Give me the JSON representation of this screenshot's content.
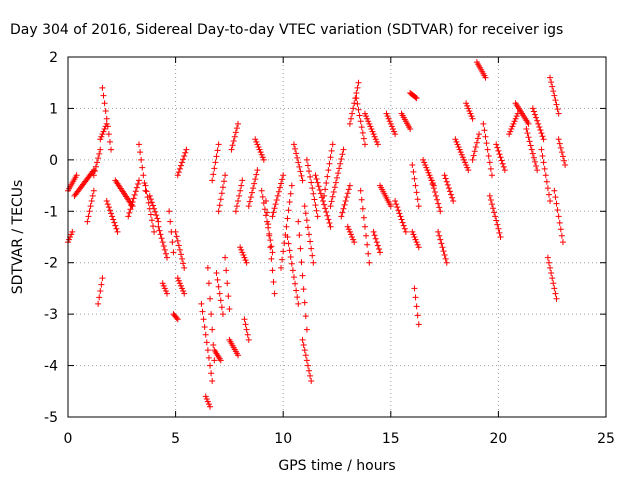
{
  "chart_data": {
    "type": "scatter",
    "title": "Day 304 of 2016, Sidereal Day-to-day VTEC variation (SDTVAR) for receiver igs",
    "xlabel": "GPS time / hours",
    "ylabel": "SDTVAR / TECUs",
    "xlim": [
      0,
      25
    ],
    "ylim": [
      -5,
      2
    ],
    "xticks": [
      "0",
      "5",
      "10",
      "15",
      "20",
      "25"
    ],
    "yticks": [
      "-5",
      "-4",
      "-3",
      "-2",
      "-1",
      "0",
      "1",
      "2"
    ],
    "grid": true,
    "marker": "+",
    "color": "#ff0000",
    "arcs": [
      [
        0.0,
        0.4,
        -0.6,
        -0.3
      ],
      [
        0.0,
        0.2,
        -1.6,
        -1.4
      ],
      [
        0.3,
        1.2,
        -0.7,
        -0.2
      ],
      [
        0.9,
        1.2,
        -1.2,
        -0.6
      ],
      [
        1.2,
        1.5,
        -0.3,
        0.2
      ],
      [
        1.4,
        1.6,
        -2.8,
        -2.3
      ],
      [
        1.5,
        1.8,
        0.4,
        0.7
      ],
      [
        1.6,
        2.0,
        1.4,
        0.2
      ],
      [
        1.8,
        2.3,
        -0.8,
        -1.4
      ],
      [
        2.2,
        3.0,
        -0.4,
        -0.9
      ],
      [
        2.8,
        3.3,
        -1.1,
        -0.4
      ],
      [
        3.3,
        3.6,
        0.3,
        -0.6
      ],
      [
        3.6,
        4.0,
        -0.5,
        -1.4
      ],
      [
        3.8,
        4.2,
        -0.7,
        -1.2
      ],
      [
        4.2,
        4.6,
        -1.3,
        -1.9
      ],
      [
        4.4,
        4.6,
        -2.4,
        -2.6
      ],
      [
        4.7,
        4.9,
        -1.0,
        -1.8
      ],
      [
        4.9,
        5.1,
        -3.0,
        -3.1
      ],
      [
        5.0,
        5.4,
        -1.4,
        -2.1
      ],
      [
        5.1,
        5.4,
        -2.3,
        -2.6
      ],
      [
        5.1,
        5.5,
        -0.3,
        0.2
      ],
      [
        6.2,
        6.7,
        -2.8,
        -4.3
      ],
      [
        6.4,
        6.6,
        -4.6,
        -4.8
      ],
      [
        6.5,
        6.8,
        -2.1,
        -3.9
      ],
      [
        6.7,
        7.0,
        -0.4,
        0.3
      ],
      [
        6.8,
        7.1,
        -3.7,
        -3.9
      ],
      [
        6.9,
        7.2,
        -2.2,
        -3.0
      ],
      [
        7.0,
        7.3,
        -1.0,
        -0.3
      ],
      [
        7.3,
        7.5,
        -1.9,
        -2.9
      ],
      [
        7.5,
        7.9,
        -3.5,
        -3.8
      ],
      [
        7.6,
        7.9,
        0.2,
        0.7
      ],
      [
        7.8,
        8.1,
        -1.0,
        -0.4
      ],
      [
        8.0,
        8.3,
        -1.7,
        -2.0
      ],
      [
        8.2,
        8.4,
        -3.1,
        -3.5
      ],
      [
        8.4,
        8.8,
        -0.9,
        -0.2
      ],
      [
        8.7,
        9.1,
        0.4,
        0.0
      ],
      [
        9.0,
        9.5,
        -0.6,
        -1.8
      ],
      [
        9.2,
        9.6,
        -0.8,
        -2.6
      ],
      [
        9.5,
        10.0,
        -1.1,
        -0.3
      ],
      [
        9.9,
        10.4,
        -2.1,
        -0.5
      ],
      [
        10.2,
        10.7,
        -1.5,
        -2.8
      ],
      [
        10.5,
        10.9,
        0.3,
        -0.4
      ],
      [
        10.7,
        11.1,
        -1.2,
        -3.3
      ],
      [
        10.9,
        11.3,
        -3.5,
        -4.3
      ],
      [
        11.0,
        11.4,
        -0.9,
        -2.0
      ],
      [
        11.1,
        11.6,
        0.0,
        -1.1
      ],
      [
        11.5,
        12.2,
        -0.3,
        -1.3
      ],
      [
        11.9,
        12.3,
        -0.7,
        0.3
      ],
      [
        12.2,
        12.8,
        -0.9,
        0.2
      ],
      [
        12.7,
        13.1,
        -1.1,
        -0.5
      ],
      [
        13.0,
        13.3,
        -1.3,
        -1.6
      ],
      [
        13.1,
        13.5,
        0.7,
        1.5
      ],
      [
        13.4,
        13.8,
        1.2,
        0.3
      ],
      [
        13.6,
        14.0,
        -0.6,
        -2.0
      ],
      [
        13.8,
        14.4,
        0.9,
        0.3
      ],
      [
        14.2,
        14.5,
        -1.4,
        -1.8
      ],
      [
        14.5,
        15.0,
        -0.5,
        -0.9
      ],
      [
        14.8,
        15.2,
        0.9,
        0.5
      ],
      [
        15.2,
        15.7,
        -0.8,
        -1.4
      ],
      [
        15.5,
        15.9,
        0.9,
        0.6
      ],
      [
        15.9,
        16.2,
        1.3,
        1.2
      ],
      [
        16.0,
        16.3,
        -0.1,
        -0.9
      ],
      [
        16.0,
        16.3,
        -1.4,
        -1.7
      ],
      [
        16.1,
        16.3,
        -2.5,
        -3.2
      ],
      [
        16.5,
        17.0,
        0.0,
        -0.5
      ],
      [
        16.9,
        17.3,
        -0.4,
        -1.0
      ],
      [
        17.2,
        17.6,
        -1.4,
        -2.0
      ],
      [
        17.5,
        17.9,
        -0.3,
        -0.8
      ],
      [
        18.0,
        18.6,
        0.4,
        -0.2
      ],
      [
        18.5,
        18.8,
        1.1,
        0.8
      ],
      [
        18.8,
        19.1,
        0.0,
        0.5
      ],
      [
        19.0,
        19.4,
        1.9,
        1.6
      ],
      [
        19.3,
        19.7,
        0.7,
        -0.3
      ],
      [
        19.6,
        20.1,
        -0.7,
        -1.5
      ],
      [
        19.9,
        20.3,
        0.3,
        -0.2
      ],
      [
        20.5,
        20.9,
        0.5,
        0.9
      ],
      [
        20.8,
        21.4,
        1.1,
        0.7
      ],
      [
        21.3,
        21.8,
        0.6,
        -0.2
      ],
      [
        21.6,
        22.1,
        1.0,
        0.4
      ],
      [
        22.0,
        22.4,
        0.2,
        -0.8
      ],
      [
        22.3,
        22.7,
        -1.9,
        -2.7
      ],
      [
        22.4,
        22.8,
        1.6,
        0.9
      ],
      [
        22.6,
        23.0,
        -0.6,
        -1.6
      ],
      [
        22.8,
        23.1,
        0.4,
        -0.1
      ]
    ]
  }
}
